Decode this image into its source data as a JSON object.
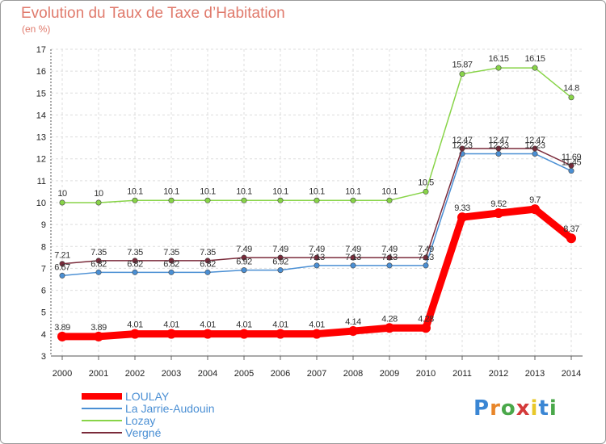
{
  "title": "Evolution du Taux de Taxe d’Habitation",
  "unit": "(en %)",
  "logo": {
    "text": "Proxiti",
    "letters": [
      "P",
      "r",
      "o",
      "x",
      "i",
      "t",
      "i"
    ],
    "colors": [
      "#3a86d4",
      "#e8862a",
      "#4aa84a",
      "#d43a3a",
      "#e8c82a",
      "#3a86d4",
      "#4aa84a"
    ]
  },
  "chart_data": {
    "type": "line",
    "title": "Evolution du Taux de Taxe d’Habitation",
    "ylabel": "(en %)",
    "xlabel": "",
    "x": [
      "2000",
      "2001",
      "2002",
      "2003",
      "2004",
      "2005",
      "2006",
      "2007",
      "2008",
      "2009",
      "2010",
      "2011",
      "2012",
      "2013",
      "2014"
    ],
    "ylim": [
      3,
      17
    ],
    "yticks": [
      "3",
      "4",
      "5",
      "6",
      "7",
      "8",
      "9",
      "10",
      "11",
      "12",
      "13",
      "14",
      "15",
      "16",
      "17"
    ],
    "grid": true,
    "legend_position": "bottom-left",
    "series": [
      {
        "name": "LOULAY",
        "color": "#ff0000",
        "values": [
          3.89,
          3.89,
          4.01,
          4.01,
          4.01,
          4.01,
          4.01,
          4.01,
          4.14,
          4.28,
          4.28,
          9.33,
          9.52,
          9.7,
          8.37
        ],
        "labels": [
          "3.89",
          "3.89",
          "4.01",
          "4.01",
          "4.01",
          "4.01",
          "4.01",
          "4.01",
          "4.14",
          "4.28",
          "4.28",
          "9.33",
          "9.52",
          "9.7",
          "8.37"
        ]
      },
      {
        "name": "La Jarrie-Audouin",
        "color": "#4a8fd4",
        "values": [
          6.67,
          6.82,
          6.82,
          6.82,
          6.82,
          6.92,
          6.92,
          7.13,
          7.13,
          7.13,
          7.13,
          12.23,
          12.23,
          12.23,
          11.45
        ],
        "labels": [
          "6.67",
          "6.82",
          "6.82",
          "6.82",
          "6.82",
          "6.92",
          "6.92",
          "7.13",
          "7.13",
          "7.13",
          "7.13",
          "12.23",
          "12.23",
          "12.23",
          "11.45"
        ]
      },
      {
        "name": "Lozay",
        "color": "#88d448",
        "values": [
          10,
          10,
          10.1,
          10.1,
          10.1,
          10.1,
          10.1,
          10.1,
          10.1,
          10.1,
          10.5,
          15.87,
          16.15,
          16.15,
          14.8
        ],
        "labels": [
          "10",
          "10",
          "10.1",
          "10.1",
          "10.1",
          "10.1",
          "10.1",
          "10.1",
          "10.1",
          "10.1",
          "10.5",
          "15.87",
          "16.15",
          "16.15",
          "14.8"
        ]
      },
      {
        "name": "Vergné",
        "color": "#7a2a3a",
        "values": [
          7.21,
          7.35,
          7.35,
          7.35,
          7.35,
          7.49,
          7.49,
          7.49,
          7.49,
          7.49,
          7.49,
          12.47,
          12.47,
          12.47,
          11.69
        ],
        "labels": [
          "7.21",
          "7.35",
          "7.35",
          "7.35",
          "7.35",
          "7.49",
          "7.49",
          "7.49",
          "7.49",
          "7.49",
          "7.49",
          "12.47",
          "12.47",
          "12.47",
          "11.69"
        ]
      }
    ]
  }
}
